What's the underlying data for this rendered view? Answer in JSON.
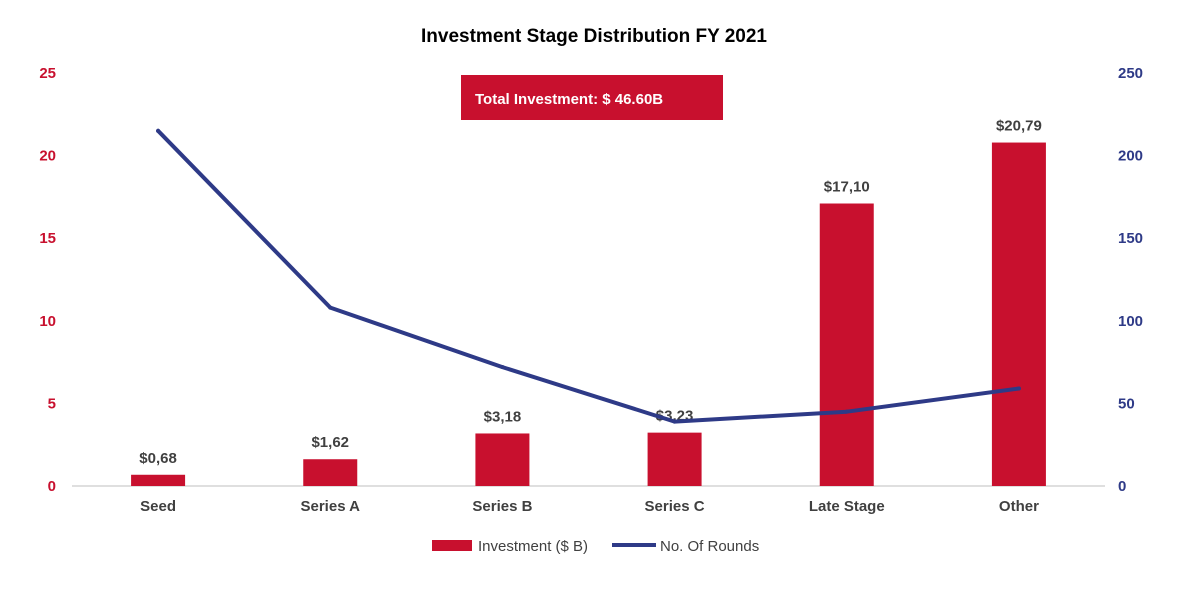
{
  "colors": {
    "bar": "#C8102E",
    "line": "#2E3A87",
    "left_axis_text": "#C8102E",
    "right_axis_text": "#2E3A87",
    "axis_line": "#BFBFBF"
  },
  "callout": {
    "text": "Total Investment: $ 46.60B"
  },
  "chart_data": {
    "type": "bar",
    "title": "Investment Stage Distribution FY 2021",
    "categories": [
      "Seed",
      "Series A",
      "Series B",
      "Series C",
      "Late Stage",
      "Other"
    ],
    "series": [
      {
        "name": "Investment ($ B)",
        "type": "bar",
        "axis": "left",
        "values": [
          0.68,
          1.62,
          3.18,
          3.23,
          17.1,
          20.79
        ],
        "labels": [
          "$0,68",
          "$1,62",
          "$3,18",
          "$3,23",
          "$17,10",
          "$20,79"
        ]
      },
      {
        "name": "No. Of Rounds",
        "type": "line",
        "axis": "right",
        "values": [
          215,
          108,
          72,
          39,
          45,
          59
        ]
      }
    ],
    "y_left": {
      "min": 0,
      "max": 25,
      "ticks": [
        "0",
        "5",
        "10",
        "15",
        "20",
        "25"
      ]
    },
    "y_right": {
      "min": 0,
      "max": 250,
      "ticks": [
        "0",
        "50",
        "100",
        "150",
        "200",
        "250"
      ]
    },
    "grid": false,
    "legend_position": "bottom"
  }
}
